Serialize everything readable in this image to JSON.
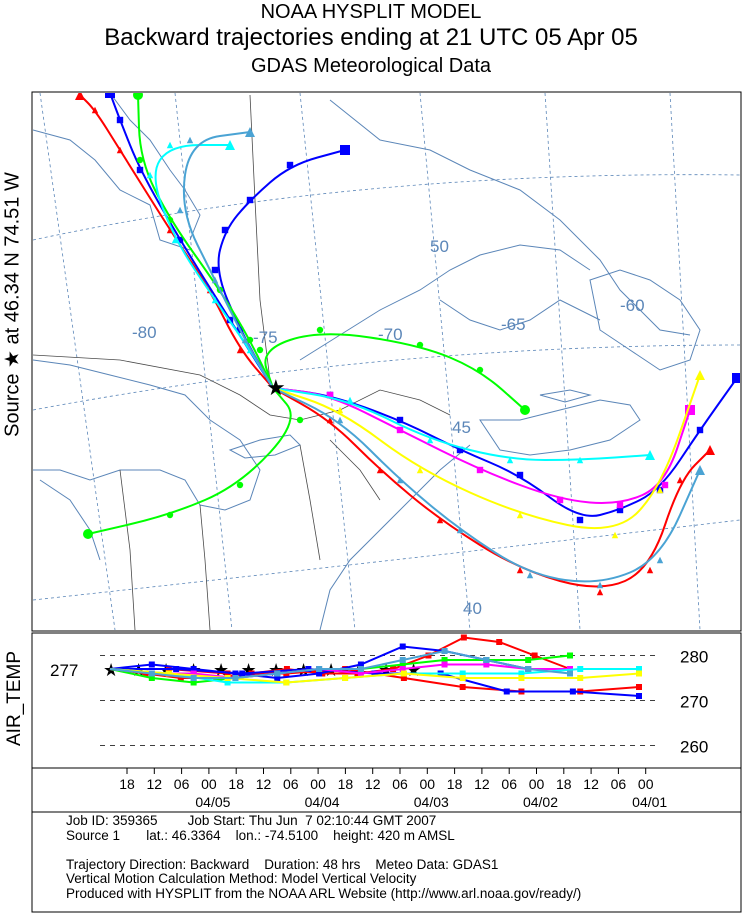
{
  "header": {
    "line1": "NOAA HYSPLIT MODEL",
    "line2": "Backward trajectories ending at 21 UTC 05 Apr 05",
    "line3": "GDAS Meteorological Data"
  },
  "side_label": "Source ★ at 46.34 N 74.51 W",
  "map": {
    "lon_labels": [
      {
        "text": "-80"
      },
      {
        "text": "-75"
      },
      {
        "text": "-70"
      },
      {
        "text": "-65"
      },
      {
        "text": "-60"
      }
    ],
    "lat_labels": [
      {
        "text": "50"
      },
      {
        "text": "45"
      },
      {
        "text": "40"
      }
    ],
    "source_symbol": "★"
  },
  "chart_data": {
    "type": "line",
    "title": "",
    "panel_label": "AIR_TEMP",
    "ylabel": "",
    "y_ticks": [
      "280",
      "270",
      "260"
    ],
    "y_ticks_left": [
      "277"
    ],
    "ylim": [
      255,
      285
    ],
    "x_ticks": [
      "18",
      "12",
      "06",
      "00",
      "18",
      "12",
      "06",
      "00",
      "18",
      "12",
      "06",
      "00",
      "18",
      "12",
      "06",
      "00",
      "18",
      "12",
      "06",
      "00"
    ],
    "x_date_labels": [
      "04/05",
      "04/04",
      "04/03",
      "04/02",
      "04/01"
    ],
    "series": [
      {
        "color": "#ff0000",
        "values": [
          277,
          276,
          275,
          275,
          276,
          277,
          276,
          276,
          277,
          280,
          284,
          283,
          280,
          277
        ]
      },
      {
        "color": "#ff0000",
        "values": [
          277,
          277,
          276,
          276,
          277,
          275,
          273,
          272,
          272,
          273
        ]
      },
      {
        "color": "#0000ff",
        "values": [
          277,
          278,
          277,
          276,
          275,
          276,
          278,
          282,
          281,
          279,
          277,
          277
        ]
      },
      {
        "color": "#0000ff",
        "values": [
          277,
          277,
          276,
          277,
          276,
          276,
          272,
          272,
          271
        ]
      },
      {
        "color": "#00ff00",
        "values": [
          277,
          275,
          274,
          275,
          276,
          277,
          277,
          278,
          279,
          279,
          279,
          280
        ]
      },
      {
        "color": "#ff00ff",
        "values": [
          277,
          276,
          276,
          275,
          276,
          277,
          276,
          277,
          278,
          278,
          277,
          277
        ]
      },
      {
        "color": "#00ffff",
        "values": [
          277,
          276,
          274,
          274,
          275,
          276,
          276,
          276,
          277,
          277
        ]
      },
      {
        "color": "#ffff00",
        "values": [
          277,
          276,
          275,
          274,
          275,
          276,
          275,
          275,
          275,
          276
        ]
      },
      {
        "color": "#4aa3d4",
        "values": [
          277,
          276,
          275,
          275,
          276,
          277,
          277,
          279,
          281,
          279,
          277,
          276
        ]
      }
    ]
  },
  "footer": {
    "line1": "Job ID: 359365        Job Start: Thu Jun  7 02:10:44 GMT 2007",
    "line2": "Source 1       lat.: 46.3364    lon.: -74.5100    height: 420 m AMSL",
    "line3": "",
    "line4": "Trajectory Direction: Backward    Duration: 48 hrs    Meteo Data: GDAS1",
    "line5": "Vertical Motion Calculation Method: Model Vertical Velocity",
    "line6": "Produced with HYSPLIT from the NOAA ARL Website (http://www.arl.noaa.gov/ready/)"
  },
  "colors": {
    "red": "#ff0000",
    "blue": "#0000ff",
    "green": "#00ff00",
    "magenta": "#ff00ff",
    "cyan": "#00ffff",
    "yellow": "#ffff00",
    "steelblue": "#4aa3d4",
    "coast": "#5b86b8",
    "grid": "#5b86b8"
  }
}
